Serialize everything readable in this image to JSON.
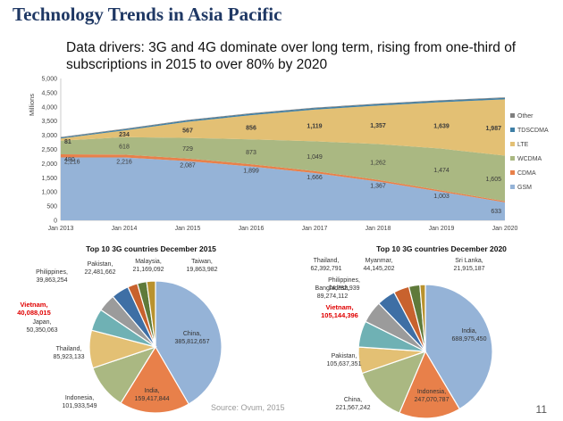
{
  "slide": {
    "title": "Technology Trends in Asia Pacific",
    "subtitle": "Data drivers: 3G and 4G dominate over long term, rising from one-third of subscriptions in 2015 to over 80% by 2020",
    "source": "Source: Ovum, 2015",
    "page_number": "11"
  },
  "chart_data": [
    {
      "type": "area",
      "stacked": true,
      "x": [
        "Jan 2013",
        "Jan 2014",
        "Jan 2015",
        "Jan 2016",
        "Jan 2017",
        "Jan 2018",
        "Jan 2019",
        "Jan 2020"
      ],
      "ylabel": "Millions",
      "ylim": [
        0,
        5000
      ],
      "yticks": [
        "0",
        "500",
        "1,000",
        "1,500",
        "2,000",
        "2,500",
        "3,000",
        "3,500",
        "4,000",
        "4,500",
        "5,000"
      ],
      "legend_position": "right",
      "series": [
        {
          "name": "GSM",
          "color": "#95b3d7",
          "values": [
            2216,
            2216,
            2087,
            1899,
            1666,
            1367,
            1003,
            633
          ],
          "labels": [
            "2,216",
            "2,216",
            "2,087",
            "1,899",
            "1,666",
            "1,367",
            "1,003",
            "633"
          ]
        },
        {
          "name": "CDMA",
          "color": "#e8804a",
          "values": [
            110,
            100,
            90,
            80,
            70,
            60,
            50,
            40
          ],
          "labels": []
        },
        {
          "name": "WCDMA",
          "color": "#aab882",
          "values": [
            480,
            618,
            729,
            873,
            1049,
            1262,
            1474,
            1605
          ],
          "labels": [
            "480",
            "618",
            "729",
            "873",
            "1,049",
            "1,262",
            "1,474",
            "1,605"
          ]
        },
        {
          "name": "LTE",
          "color": "#e3c074",
          "values": [
            81,
            234,
            567,
            856,
            1119,
            1357,
            1639,
            1987
          ],
          "labels": [
            "81",
            "234",
            "567",
            "856",
            "1,119",
            "1,357",
            "1,639",
            "1,987"
          ]
        },
        {
          "name": "TDSCDMA",
          "color": "#3e7fa6",
          "values": [
            30,
            40,
            50,
            50,
            50,
            50,
            50,
            50
          ],
          "labels": []
        },
        {
          "name": "Other",
          "color": "#7f7f7f",
          "values": [
            20,
            20,
            20,
            20,
            20,
            20,
            20,
            20
          ],
          "labels": []
        }
      ]
    },
    {
      "type": "pie",
      "title": "Top 10 3G countries December 2015",
      "slices": [
        {
          "name": "China",
          "label": "China,",
          "value_label": "385,812,657",
          "value": 385812657,
          "color": "#95b3d7"
        },
        {
          "name": "India",
          "label": "India,",
          "value_label": "159,417,844",
          "value": 159417844,
          "color": "#e8804a"
        },
        {
          "name": "Indonesia",
          "label": "Indonesia,",
          "value_label": "101,933,549",
          "value": 101933549,
          "color": "#aab882"
        },
        {
          "name": "Thailand",
          "label": "Thailand,",
          "value_label": "85,923,133",
          "value": 85923133,
          "color": "#e3c074"
        },
        {
          "name": "Japan",
          "label": "Japan,",
          "value_label": "50,350,063",
          "value": 50350063,
          "color": "#6fb1b4"
        },
        {
          "name": "Vietnam",
          "label": "Vietnam,",
          "value_label": "40,088,015",
          "value": 40088015,
          "color": "#9b9b9b",
          "highlight": true
        },
        {
          "name": "Philippines",
          "label": "Philippines,",
          "value_label": "39,863,254",
          "value": 39863254,
          "color": "#3e6fa5"
        },
        {
          "name": "Pakistan",
          "label": "Pakistan,",
          "value_label": "22,481,662",
          "value": 22481662,
          "color": "#c8622e"
        },
        {
          "name": "Malaysia",
          "label": "Malaysia,",
          "value_label": "21,169,092",
          "value": 21169092,
          "color": "#5f7a3a"
        },
        {
          "name": "Taiwan",
          "label": "Taiwan,",
          "value_label": "19,863,982",
          "value": 19863982,
          "color": "#b9922e"
        }
      ]
    },
    {
      "type": "pie",
      "title": "Top 10 3G countries December 2020",
      "slices": [
        {
          "name": "India",
          "label": "India,",
          "value_label": "688,975,450",
          "value": 688975450,
          "color": "#95b3d7"
        },
        {
          "name": "Indonesia",
          "label": "Indonesia,",
          "value_label": "247,070,787",
          "value": 247070787,
          "color": "#e8804a"
        },
        {
          "name": "China",
          "label": "China,",
          "value_label": "221,567,242",
          "value": 221567242,
          "color": "#aab882"
        },
        {
          "name": "Pakistan",
          "label": "Pakistan,",
          "value_label": "105,637,351",
          "value": 105637351,
          "color": "#e3c074"
        },
        {
          "name": "Vietnam",
          "label": "Vietnam,",
          "value_label": "105,144,396",
          "value": 105144396,
          "color": "#6fb1b4",
          "highlight": true
        },
        {
          "name": "Bangladesh",
          "label": "Bangladesh,",
          "value_label": "89,274,112",
          "value": 89274112,
          "color": "#9b9b9b"
        },
        {
          "name": "Philippines",
          "label": "Philippines,",
          "value_label": "74,782,939",
          "value": 74782939,
          "color": "#3e6fa5"
        },
        {
          "name": "Thailand",
          "label": "Thailand,",
          "value_label": "62,392,791",
          "value": 62392791,
          "color": "#c8622e"
        },
        {
          "name": "Myanmar",
          "label": "Myanmar,",
          "value_label": "44,145,202",
          "value": 44145202,
          "color": "#5f7a3a"
        },
        {
          "name": "Sri Lanka",
          "label": "Sri Lanka,",
          "value_label": "21,915,187",
          "value": 21915187,
          "color": "#b9922e"
        }
      ]
    }
  ]
}
